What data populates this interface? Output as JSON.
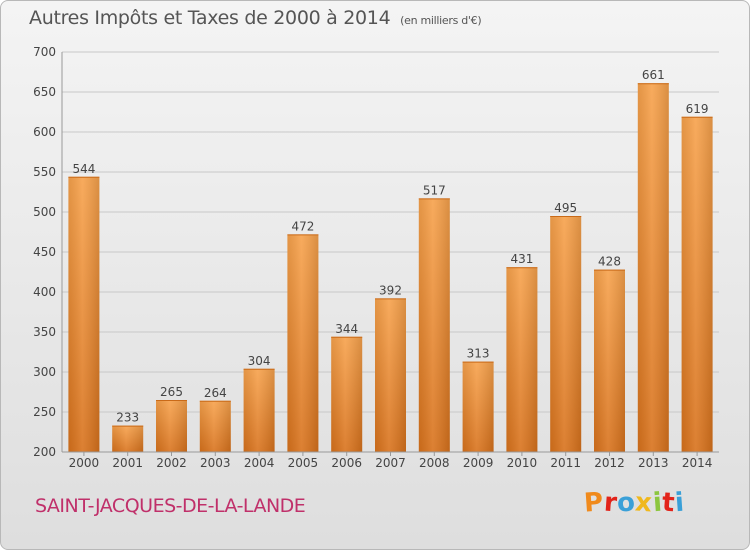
{
  "header": {
    "title": "Autres Impôts et Taxes de 2000 à 2014",
    "subtitle": "(en milliers d'€)"
  },
  "footer": {
    "town": "SAINT-JACQUES-DE-LA-LANDE",
    "brand_letters": [
      "P",
      "r",
      "o",
      "x",
      "i",
      "t",
      "i"
    ],
    "brand_colors": [
      "#f08a1c",
      "#e2231a",
      "#3aa0d8",
      "#f0b81c",
      "#8cc63f",
      "#e2231a",
      "#3aa0d8"
    ]
  },
  "colors": {
    "bar_light": "#f7a24c",
    "bar_dark": "#d8721c",
    "grid": "#c8c8c8",
    "axis_text": "#444444"
  },
  "chart_data": {
    "type": "bar",
    "title": "Autres Impôts et Taxes de 2000 à 2014",
    "subtitle": "(en milliers d'€)",
    "categories": [
      "2000",
      "2001",
      "2002",
      "2003",
      "2004",
      "2005",
      "2006",
      "2007",
      "2008",
      "2009",
      "2010",
      "2011",
      "2012",
      "2013",
      "2014"
    ],
    "values": [
      544,
      233,
      265,
      264,
      304,
      472,
      344,
      392,
      517,
      313,
      431,
      495,
      428,
      661,
      619
    ],
    "ylim": [
      200,
      700
    ],
    "yticks": [
      200,
      250,
      300,
      350,
      400,
      450,
      500,
      550,
      600,
      650,
      700
    ],
    "grid": true,
    "data_labels": true
  }
}
